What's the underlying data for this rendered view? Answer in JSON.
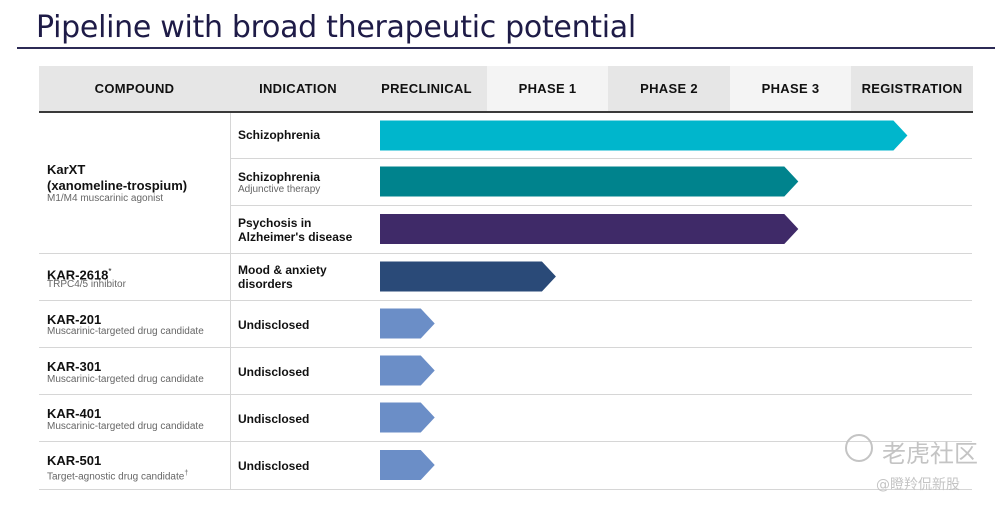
{
  "title": "Pipeline with broad therapeutic potential",
  "header": {
    "compound": "COMPOUND",
    "indication": "INDICATION",
    "phases": [
      "PRECLINICAL",
      "PHASE 1",
      "PHASE 2",
      "PHASE 3",
      "REGISTRATION"
    ]
  },
  "groups": [
    {
      "name": "KarXT",
      "name2": "(xanomeline-trospium)",
      "sub": "M1/M4 muscarinic agonist"
    },
    {
      "name": "KAR-2618",
      "sup": "*",
      "sub": "TRPC4/5 inhibitor"
    },
    {
      "name": "KAR-201",
      "sub": "Muscarinic-targeted drug candidate"
    },
    {
      "name": "KAR-301",
      "sub": "Muscarinic-targeted drug candidate"
    },
    {
      "name": "KAR-401",
      "sub": "Muscarinic-targeted drug candidate"
    },
    {
      "name": "KAR-501",
      "sub": "Target-agnostic drug candidate",
      "sup": "†"
    }
  ],
  "indications": [
    {
      "line1": "Schizophrenia",
      "line2": "",
      "sub": ""
    },
    {
      "line1": "Schizophrenia",
      "line2": "",
      "sub": "Adjunctive therapy"
    },
    {
      "line1": "Psychosis in",
      "line2": "Alzheimer's disease",
      "sub": ""
    },
    {
      "line1": "Mood & anxiety",
      "line2": "disorders",
      "sub": ""
    },
    {
      "line1": "Undisclosed",
      "line2": "",
      "sub": ""
    },
    {
      "line1": "Undisclosed",
      "line2": "",
      "sub": ""
    },
    {
      "line1": "Undisclosed",
      "line2": "",
      "sub": ""
    },
    {
      "line1": "Undisclosed",
      "line2": "",
      "sub": ""
    }
  ],
  "chart_data": {
    "type": "bar",
    "orientation": "horizontal",
    "x_axis": "phases",
    "phase_columns": [
      "PRECLINICAL",
      "PHASE 1",
      "PHASE 2",
      "PHASE 3",
      "REGISTRATION"
    ],
    "progress": [
      4.5,
      3.6,
      3.6,
      1.6,
      0.6,
      0.6,
      0.6,
      0.6
    ],
    "colors": [
      "#00b6cc",
      "#00838d",
      "#3f2a68",
      "#2a4a78",
      "#6b8ec7",
      "#6b8ec7",
      "#6b8ec7",
      "#6b8ec7"
    ]
  },
  "watermark": {
    "line1": "老虎社区",
    "line2": "@瞪羚侃新股"
  }
}
